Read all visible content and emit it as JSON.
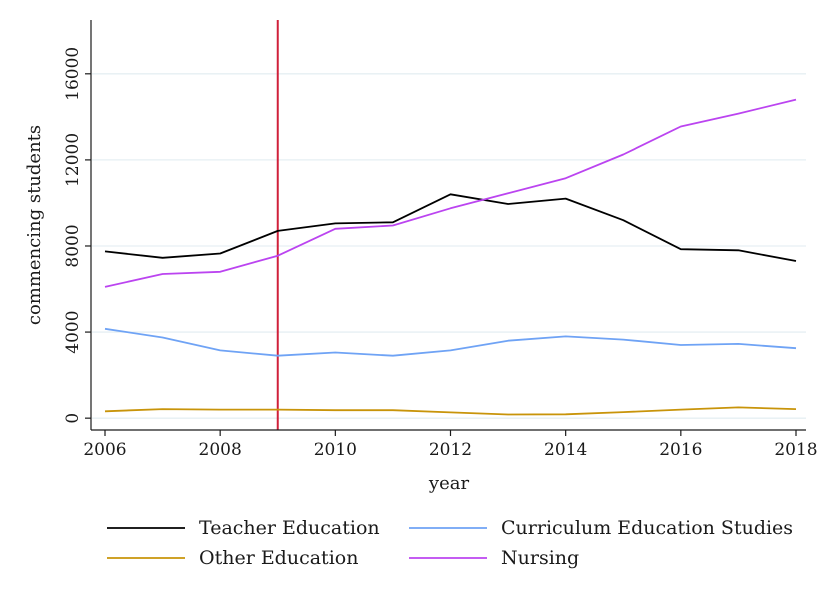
{
  "chart_data": {
    "type": "line",
    "title": "",
    "xlabel": "year",
    "ylabel": "commencing students",
    "x": [
      2006,
      2007,
      2008,
      2009,
      2010,
      2011,
      2012,
      2013,
      2014,
      2015,
      2016,
      2017,
      2018
    ],
    "xticks": [
      2006,
      2008,
      2010,
      2012,
      2014,
      2016,
      2018
    ],
    "yticks": [
      0,
      4000,
      8000,
      12000,
      16000
    ],
    "xlim": [
      2006,
      2018
    ],
    "ylim": [
      -550,
      18500
    ],
    "grid": true,
    "legend_position": "bottom",
    "reference_line": {
      "axis": "x",
      "value": 2009,
      "color": "#d0203a"
    },
    "series": [
      {
        "name": "Teacher Education",
        "color": "#000000",
        "values": [
          7750,
          7450,
          7650,
          8700,
          9050,
          9100,
          10400,
          9950,
          10200,
          9200,
          7850,
          7800,
          7300
        ]
      },
      {
        "name": "Curriculum Education Studies",
        "color": "#6fa3f5",
        "values": [
          4150,
          3750,
          3150,
          2900,
          3050,
          2900,
          3150,
          3600,
          3800,
          3650,
          3400,
          3450,
          3250
        ]
      },
      {
        "name": "Other Education",
        "color": "#c8940a",
        "values": [
          320,
          420,
          400,
          400,
          370,
          370,
          270,
          170,
          180,
          280,
          400,
          500,
          420
        ]
      },
      {
        "name": "Nursing",
        "color": "#bb44f0",
        "values": [
          6100,
          6700,
          6800,
          7550,
          8800,
          8950,
          9750,
          10450,
          11150,
          12250,
          13550,
          14150,
          14800
        ]
      }
    ]
  }
}
